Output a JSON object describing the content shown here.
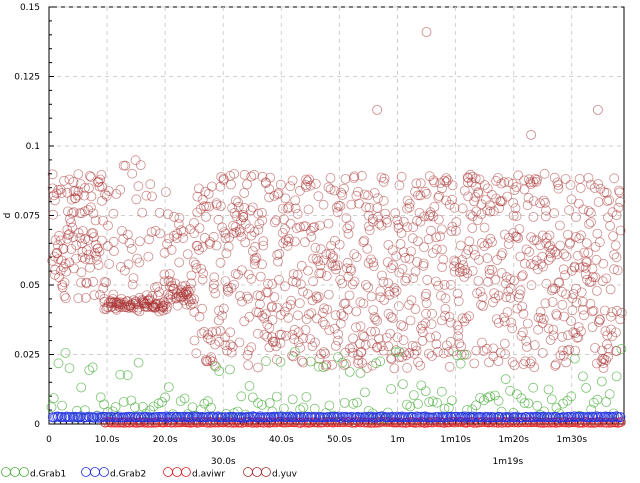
{
  "chart_data": {
    "type": "scatter",
    "ylabel": "d",
    "xlabel": "",
    "xlim": [
      0,
      99
    ],
    "ylim": [
      0,
      0.15
    ],
    "grid": true,
    "x_ticks": [
      {
        "value": 0,
        "label": "0"
      },
      {
        "value": 10,
        "label": "10.0s"
      },
      {
        "value": 20,
        "label": "20.0s"
      },
      {
        "value": 30,
        "label": "30.0s"
      },
      {
        "value": 40,
        "label": "40.0s"
      },
      {
        "value": 50,
        "label": "50.0s"
      },
      {
        "value": 60,
        "label": "1m"
      },
      {
        "value": 70,
        "label": "1m10s"
      },
      {
        "value": 80,
        "label": "1m20s"
      },
      {
        "value": 90,
        "label": "1m30s"
      }
    ],
    "x_ticks_secondary": [
      {
        "value": 30,
        "label": "30.0s"
      },
      {
        "value": 79,
        "label": "1m19s"
      }
    ],
    "y_ticks": [
      {
        "value": 0,
        "label": "0"
      },
      {
        "value": 0.025,
        "label": "0.025"
      },
      {
        "value": 0.05,
        "label": "0.05"
      },
      {
        "value": 0.075,
        "label": "0.075"
      },
      {
        "value": 0.1,
        "label": "0.1"
      },
      {
        "value": 0.125,
        "label": "0.125"
      },
      {
        "value": 0.15,
        "label": "0.15"
      }
    ],
    "legend_position": "bottom",
    "series": [
      {
        "name": "d.Grab1",
        "color": "#4caf3f",
        "x_start": 0.3,
        "x_end": 98.5,
        "count": 150,
        "y_mode": "grab1"
      },
      {
        "name": "d.Grab2",
        "color": "#2030e0",
        "x_start": 0.5,
        "x_end": 98.5,
        "count": 420,
        "y_mode": "grab2"
      },
      {
        "name": "d.aviwr",
        "color": "#e02020",
        "x_start": 9.5,
        "x_end": 98.5,
        "count": 300,
        "y_mode": "aviwr"
      },
      {
        "name": "d.yuv",
        "color": "#a83030",
        "x_start": 0.5,
        "x_end": 98.5,
        "count": 1300,
        "y_mode": "yuv"
      }
    ]
  }
}
